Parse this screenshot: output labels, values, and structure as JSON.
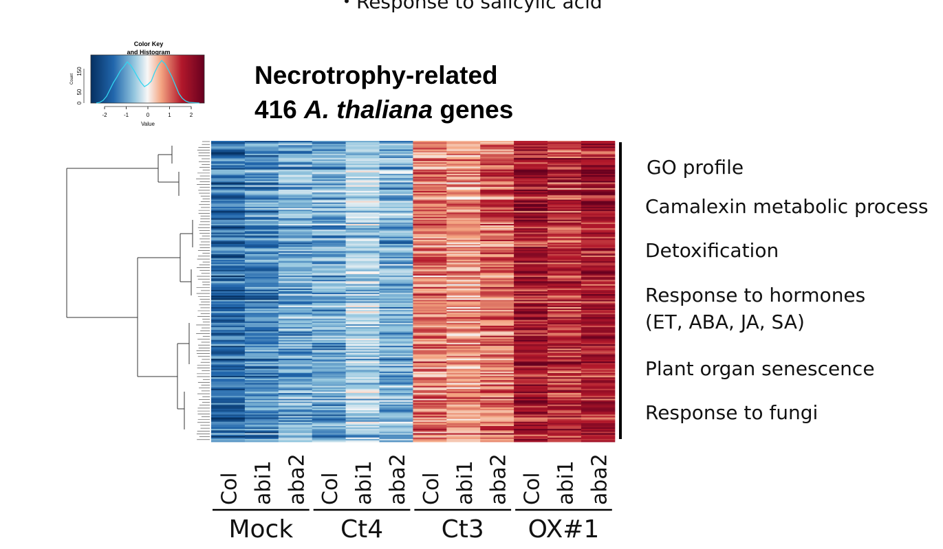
{
  "top_text": "・Response to salicylic acid",
  "color_key": {
    "title_lines": [
      "Color Key",
      "and Histogram"
    ],
    "x_label": "Value",
    "y_label": "Count",
    "x_ticks": [
      "-2",
      "-1",
      "0",
      "1",
      "2"
    ],
    "y_ticks": [
      "0",
      "50",
      "150"
    ]
  },
  "title": {
    "line1": "Necrotrophy-related",
    "line2": {
      "count": "416",
      "species": "A. thaliana",
      "rest": "genes"
    }
  },
  "columns": [
    "Col",
    "abi1",
    "aba2",
    "Col",
    "abi1",
    "aba2",
    "Col",
    "abi1",
    "aba2",
    "Col",
    "abi1",
    "aba2"
  ],
  "groups": [
    "Mock",
    "Ct4",
    "Ct3",
    "OX#1"
  ],
  "go_profile": {
    "heading": "GO profile",
    "items": [
      [
        "Camalexin metabolic process"
      ],
      [
        "Detoxification"
      ],
      [
        "Response to hormones",
        "(ET, ABA, JA, SA)"
      ],
      [
        "Plant organ senescence"
      ],
      [
        "Response to fungi"
      ]
    ]
  }
}
